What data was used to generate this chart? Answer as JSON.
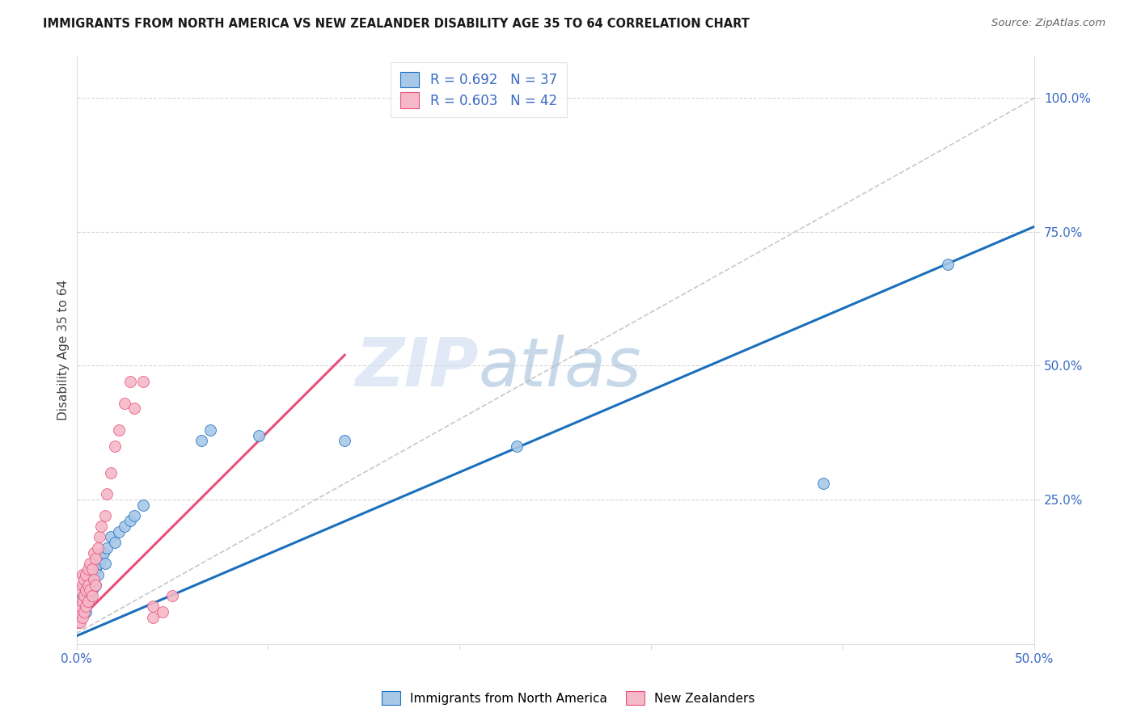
{
  "title": "IMMIGRANTS FROM NORTH AMERICA VS NEW ZEALANDER DISABILITY AGE 35 TO 64 CORRELATION CHART",
  "source": "Source: ZipAtlas.com",
  "ylabel": "Disability Age 35 to 64",
  "legend_blue_r": "R = 0.692",
  "legend_blue_n": "N = 37",
  "legend_pink_r": "R = 0.603",
  "legend_pink_n": "N = 42",
  "legend_blue_label": "Immigrants from North America",
  "legend_pink_label": "New Zealanders",
  "blue_color": "#a8c8e8",
  "blue_line_color": "#1a6fbd",
  "pink_color": "#f5b8c8",
  "pink_line_color": "#e8507a",
  "diagonal_color": "#c8c8c8",
  "watermark_zip": "ZIP",
  "watermark_atlas": "atlas",
  "xlim": [
    0.0,
    0.5
  ],
  "ylim": [
    -0.02,
    1.08
  ],
  "blue_scatter_x": [
    0.002,
    0.003,
    0.003,
    0.004,
    0.004,
    0.005,
    0.005,
    0.005,
    0.006,
    0.006,
    0.007,
    0.007,
    0.008,
    0.008,
    0.009,
    0.01,
    0.01,
    0.011,
    0.012,
    0.013,
    0.014,
    0.015,
    0.016,
    0.018,
    0.02,
    0.022,
    0.025,
    0.028,
    0.03,
    0.035,
    0.065,
    0.07,
    0.095,
    0.14,
    0.23,
    0.39,
    0.455
  ],
  "blue_scatter_y": [
    0.03,
    0.05,
    0.07,
    0.04,
    0.08,
    0.04,
    0.06,
    0.09,
    0.06,
    0.1,
    0.07,
    0.09,
    0.08,
    0.12,
    0.1,
    0.09,
    0.12,
    0.11,
    0.13,
    0.14,
    0.15,
    0.13,
    0.16,
    0.18,
    0.17,
    0.19,
    0.2,
    0.21,
    0.22,
    0.24,
    0.36,
    0.38,
    0.37,
    0.36,
    0.35,
    0.28,
    0.69
  ],
  "pink_scatter_x": [
    0.001,
    0.001,
    0.002,
    0.002,
    0.002,
    0.003,
    0.003,
    0.003,
    0.003,
    0.004,
    0.004,
    0.004,
    0.005,
    0.005,
    0.005,
    0.006,
    0.006,
    0.006,
    0.007,
    0.007,
    0.008,
    0.008,
    0.009,
    0.009,
    0.01,
    0.01,
    0.011,
    0.012,
    0.013,
    0.015,
    0.016,
    0.018,
    0.02,
    0.022,
    0.025,
    0.028,
    0.03,
    0.035,
    0.04,
    0.04,
    0.045,
    0.05
  ],
  "pink_scatter_y": [
    0.02,
    0.04,
    0.02,
    0.05,
    0.08,
    0.03,
    0.06,
    0.09,
    0.11,
    0.04,
    0.07,
    0.1,
    0.05,
    0.08,
    0.11,
    0.06,
    0.09,
    0.12,
    0.08,
    0.13,
    0.07,
    0.12,
    0.1,
    0.15,
    0.09,
    0.14,
    0.16,
    0.18,
    0.2,
    0.22,
    0.26,
    0.3,
    0.35,
    0.38,
    0.43,
    0.47,
    0.42,
    0.47,
    0.03,
    0.05,
    0.04,
    0.07
  ],
  "blue_line_x": [
    0.0,
    0.5
  ],
  "blue_line_y": [
    -0.005,
    0.76
  ],
  "pink_line_x": [
    0.0,
    0.14
  ],
  "pink_line_y": [
    0.02,
    0.52
  ],
  "diag_line_x": [
    0.0,
    0.5
  ],
  "diag_line_y": [
    0.0,
    1.0
  ]
}
